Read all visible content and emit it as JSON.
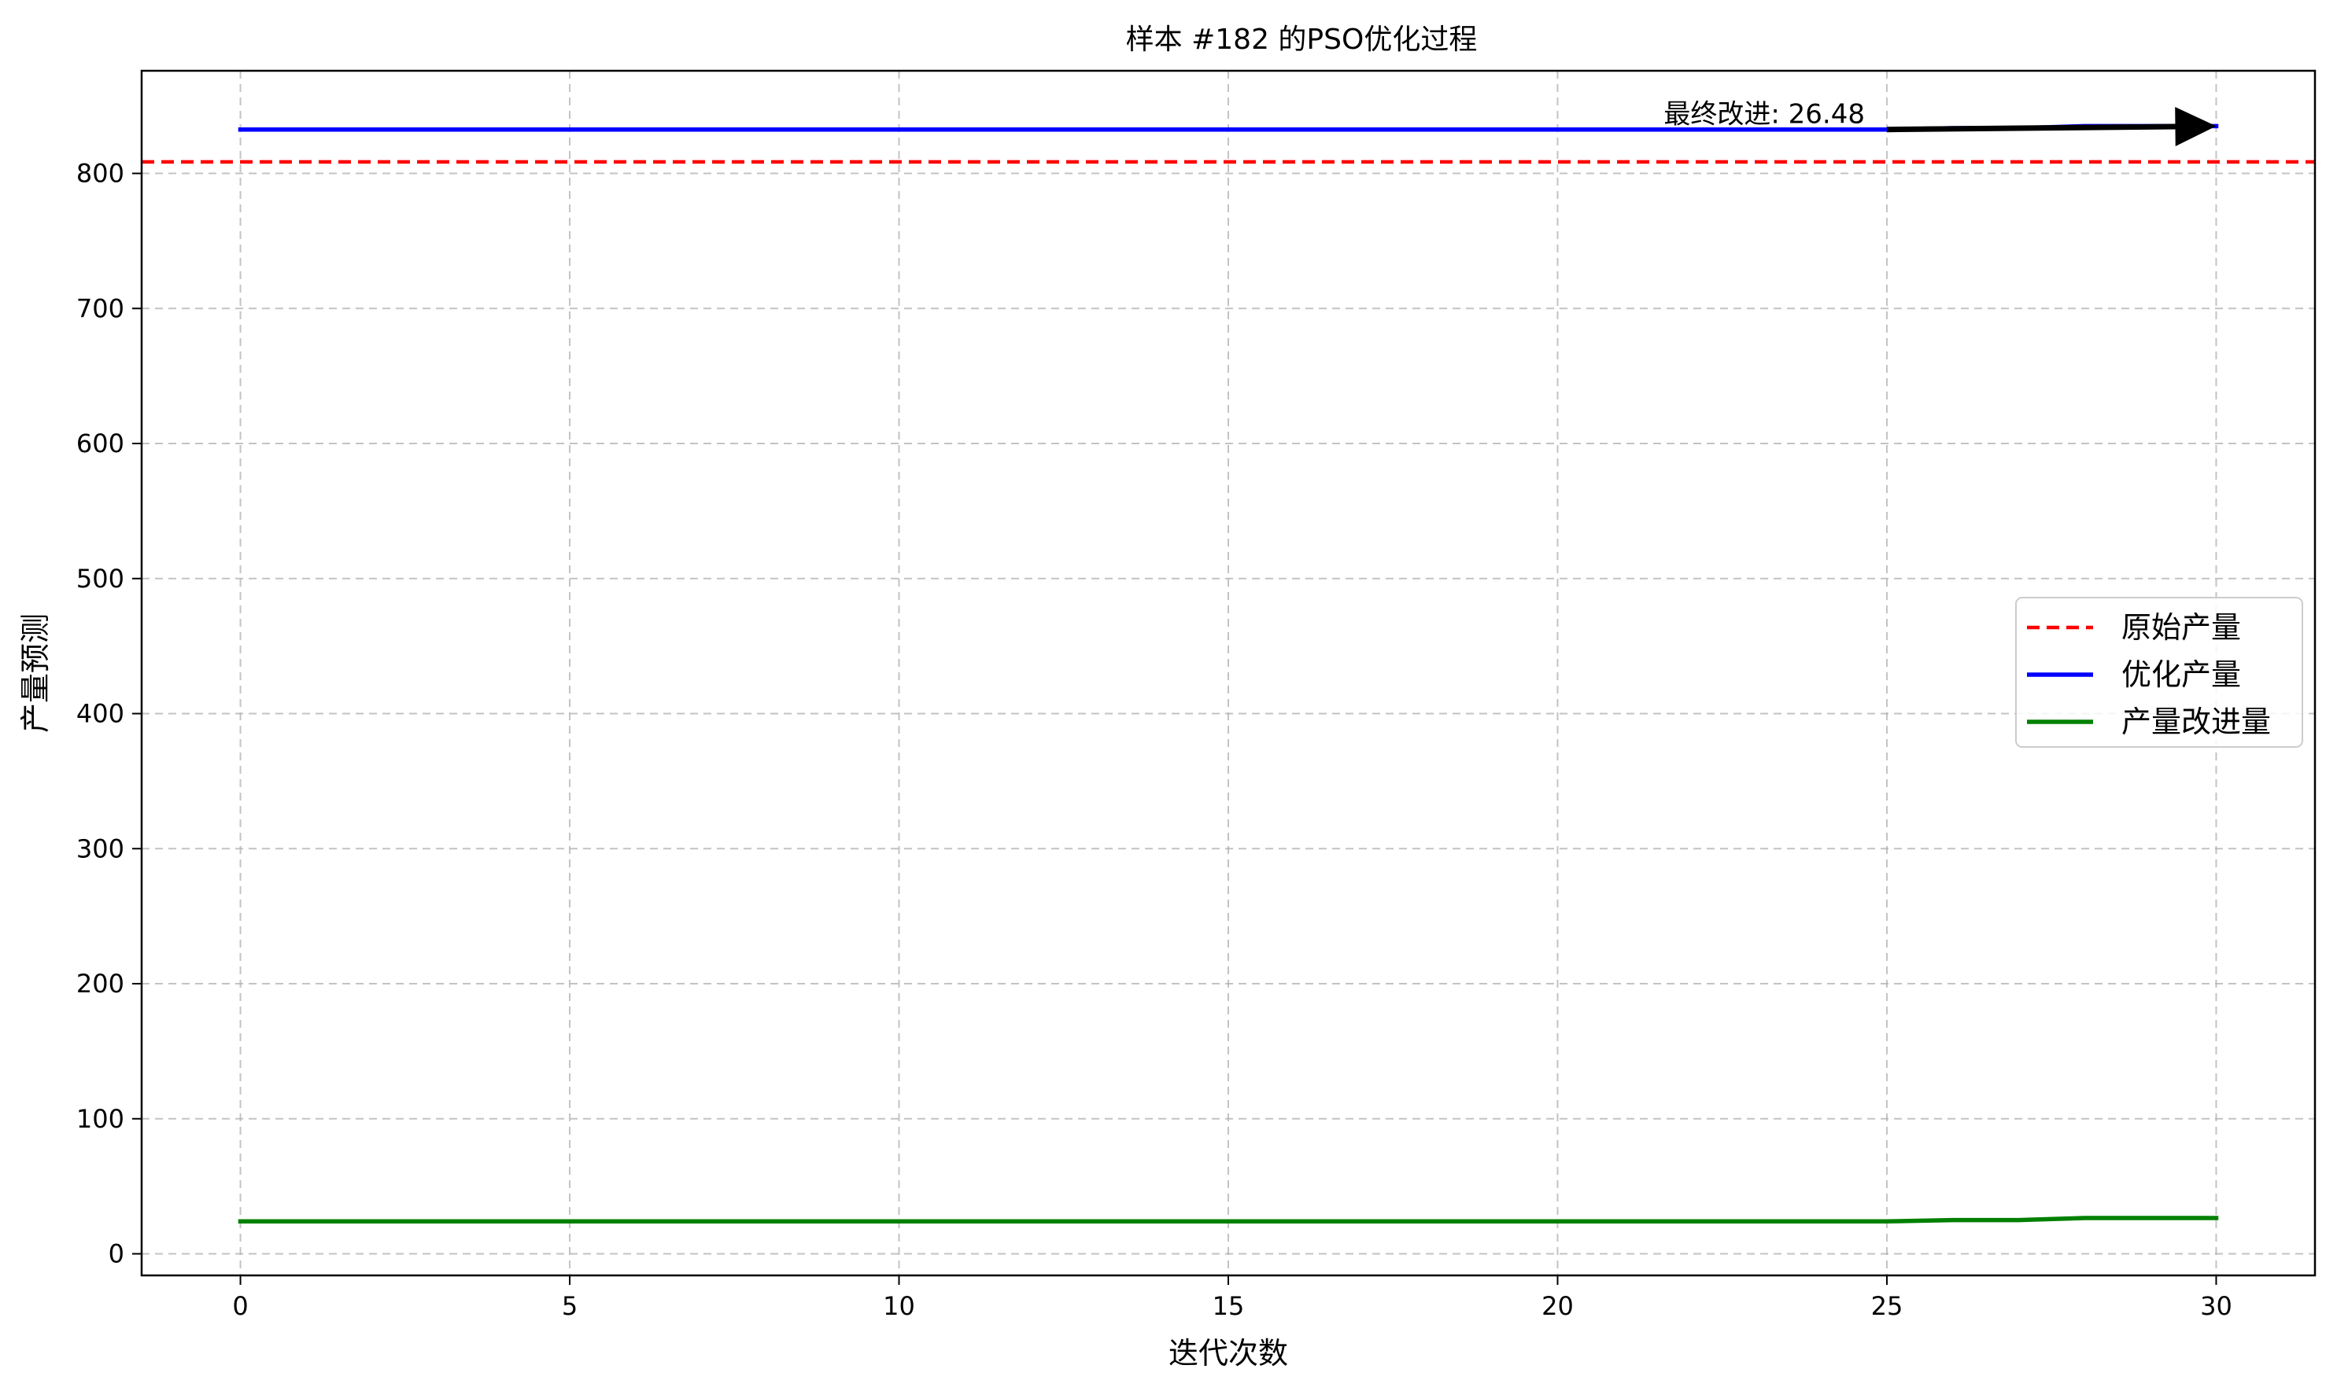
{
  "chart_data": {
    "type": "line",
    "title": "样本 #182 的PSO优化过程",
    "xlabel": "迭代次数",
    "ylabel": "产量预测",
    "xlim": [
      -1.5,
      31.5
    ],
    "ylim": [
      -16,
      876
    ],
    "xticks": [
      0,
      5,
      10,
      15,
      20,
      25,
      30
    ],
    "yticks": [
      0,
      100,
      200,
      300,
      400,
      500,
      600,
      700,
      800
    ],
    "grid": true,
    "legend_position": "center-right",
    "x": [
      0,
      1,
      2,
      3,
      4,
      5,
      6,
      7,
      8,
      9,
      10,
      11,
      12,
      13,
      14,
      15,
      16,
      17,
      18,
      19,
      20,
      21,
      22,
      23,
      24,
      25,
      26,
      27,
      28,
      29,
      30
    ],
    "series": [
      {
        "name": "原始产量",
        "kind": "hline",
        "value": 808.5,
        "color": "#ff0000",
        "style": "dashed"
      },
      {
        "name": "优化产量",
        "color": "#0000ff",
        "style": "solid",
        "values": [
          832.5,
          832.5,
          832.5,
          832.5,
          832.5,
          832.5,
          832.5,
          832.5,
          832.5,
          832.5,
          832.5,
          832.5,
          832.5,
          832.5,
          832.5,
          832.5,
          832.5,
          832.5,
          832.5,
          832.5,
          832.5,
          832.5,
          832.5,
          832.5,
          832.5,
          832.5,
          833.5,
          833.5,
          835.0,
          835.0,
          835.0
        ]
      },
      {
        "name": "产量改进量",
        "color": "#008000",
        "style": "solid",
        "values": [
          24.0,
          24.0,
          24.0,
          24.0,
          24.0,
          24.0,
          24.0,
          24.0,
          24.0,
          24.0,
          24.0,
          24.0,
          24.0,
          24.0,
          24.0,
          24.0,
          24.0,
          24.0,
          24.0,
          24.0,
          24.0,
          24.0,
          24.0,
          24.0,
          24.0,
          24.0,
          25.0,
          25.0,
          26.48,
          26.48,
          26.48
        ]
      }
    ],
    "annotation": {
      "text": "最终改进: 26.48",
      "arrow_from": [
        25,
        832.5
      ],
      "arrow_to": [
        30,
        835.0
      ]
    }
  }
}
